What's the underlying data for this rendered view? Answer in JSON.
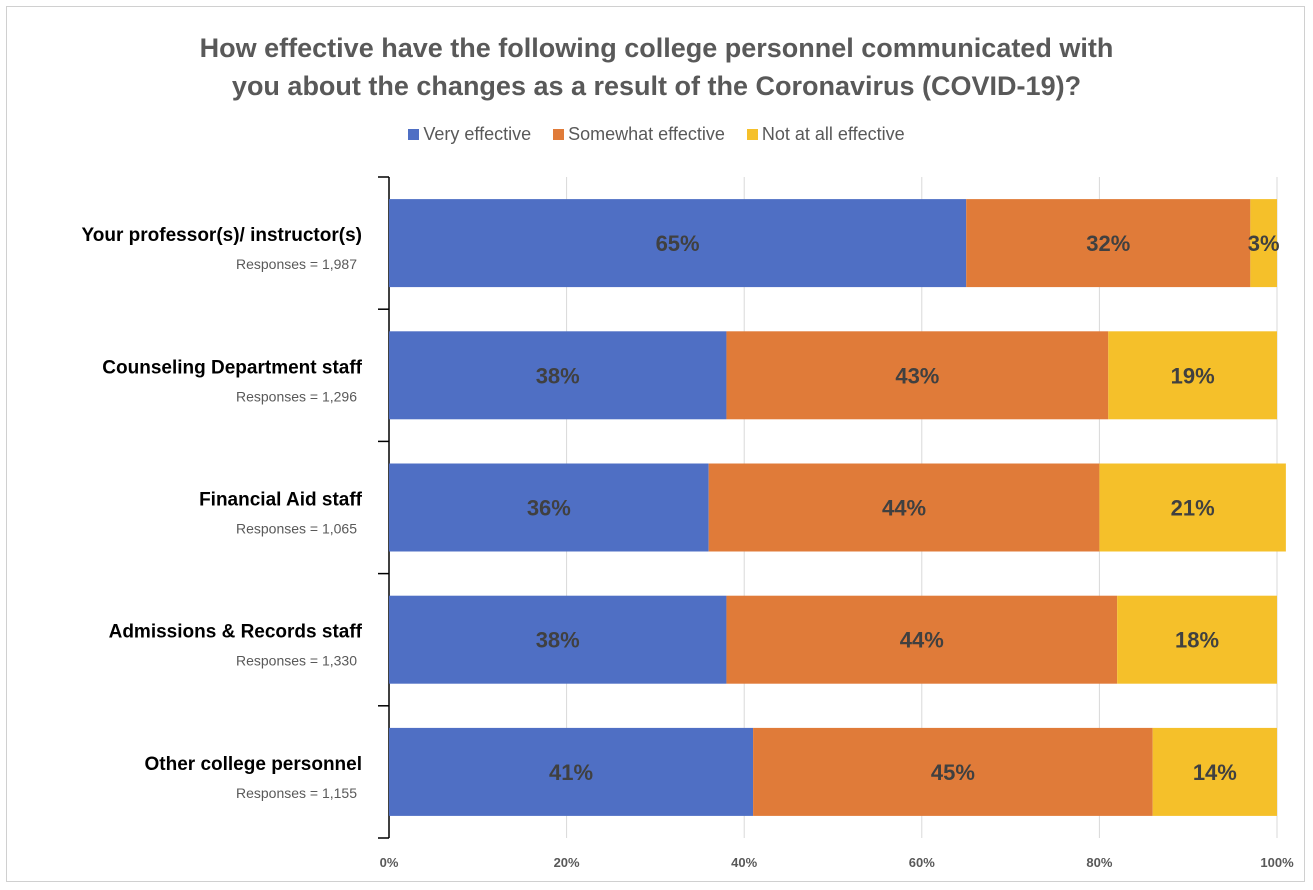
{
  "chart_data": {
    "type": "bar",
    "orientation": "horizontal",
    "stacked": true,
    "title_lines": [
      "How effective have the following college personnel communicated with",
      "you about the changes as a result of the Coronavirus (COVID-19)?"
    ],
    "categories": [
      "Your professor(s)/ instructor(s)",
      "Counseling Department staff",
      "Financial Aid staff",
      "Admissions & Records staff",
      "Other college personnel"
    ],
    "category_notes": [
      "Responses = 1,987",
      "Responses = 1,296",
      "Responses = 1,065",
      "Responses = 1,330",
      "Responses = 1,155"
    ],
    "series": [
      {
        "name": "Very effective",
        "color": "#4f6fc4",
        "values": [
          65,
          38,
          36,
          38,
          41
        ],
        "labels": [
          "65%",
          "38%",
          "36%",
          "38%",
          "41%"
        ]
      },
      {
        "name": "Somewhat effective",
        "color": "#e07b39",
        "values": [
          32,
          43,
          44,
          44,
          45
        ],
        "labels": [
          "32%",
          "43%",
          "44%",
          "44%",
          "45%"
        ]
      },
      {
        "name": "Not at all effective",
        "color": "#f5c02a",
        "values": [
          3,
          19,
          21,
          18,
          14
        ],
        "labels": [
          "3%",
          "19%",
          "21%",
          "18%",
          "14%"
        ]
      }
    ],
    "x_ticks": [
      "0%",
      "20%",
      "40%",
      "60%",
      "80%",
      "100%"
    ],
    "xlim": [
      0,
      100
    ],
    "grid": true,
    "legend_position": "top"
  }
}
